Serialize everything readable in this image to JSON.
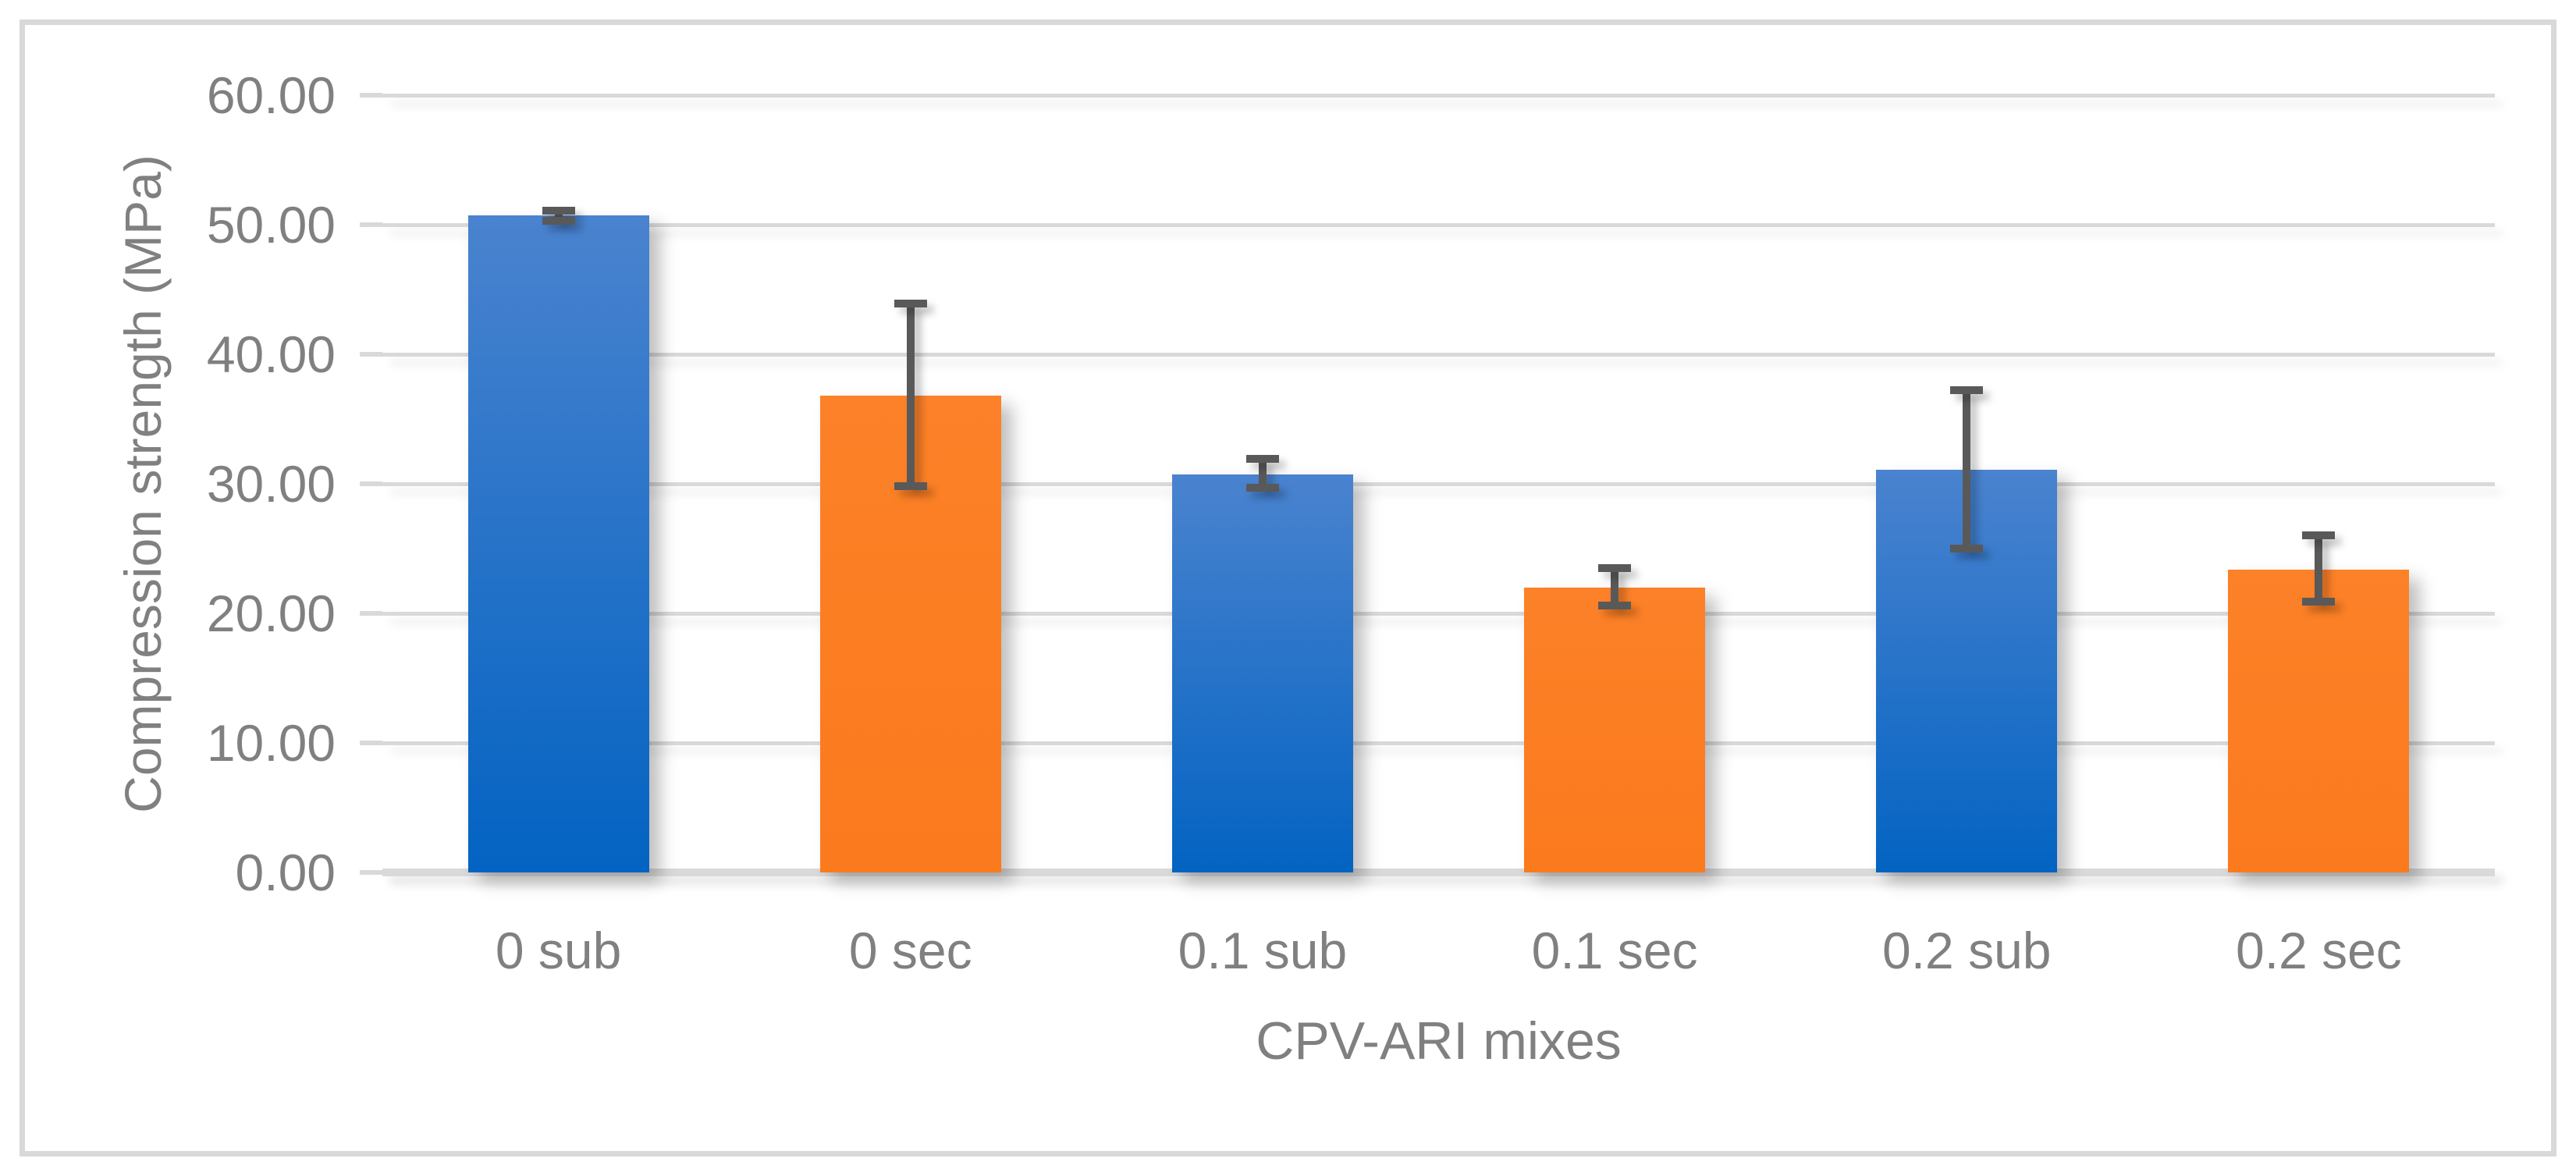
{
  "chart_data": {
    "type": "bar",
    "title": "",
    "xlabel": "CPV-ARI mixes",
    "ylabel": "Compression strength (MPa)",
    "categories": [
      "0 sub",
      "0 sec",
      "0.1 sub",
      "0.1 sec",
      "0.2 sub",
      "0.2 sec"
    ],
    "values": [
      50.7,
      36.8,
      30.7,
      22.0,
      31.1,
      23.4
    ],
    "error_plus": [
      0.4,
      7.1,
      1.2,
      1.5,
      6.1,
      2.6
    ],
    "error_minus": [
      0.4,
      7.0,
      1.0,
      1.4,
      6.1,
      2.5
    ],
    "bar_colors": [
      "blue",
      "orange",
      "blue",
      "orange",
      "blue",
      "orange"
    ],
    "ylim": [
      0,
      60
    ],
    "ytick_step": 10,
    "ytick_labels": [
      "0.00",
      "10.00",
      "20.00",
      "30.00",
      "40.00",
      "50.00",
      "60.00"
    ],
    "grid": true,
    "legend": "none",
    "colors": {
      "bar_blue_top": "#4a83cf",
      "bar_blue_bottom": "#0363c2",
      "bar_orange_top": "#fc8128",
      "bar_orange_bottom": "#fb7a1d",
      "error_bar": "#595959",
      "gridline": "#d9d9d9",
      "axis_line": "#d9d9d9",
      "border": "#d9d9d9",
      "text": "#808080",
      "background": "#ffffff"
    }
  }
}
